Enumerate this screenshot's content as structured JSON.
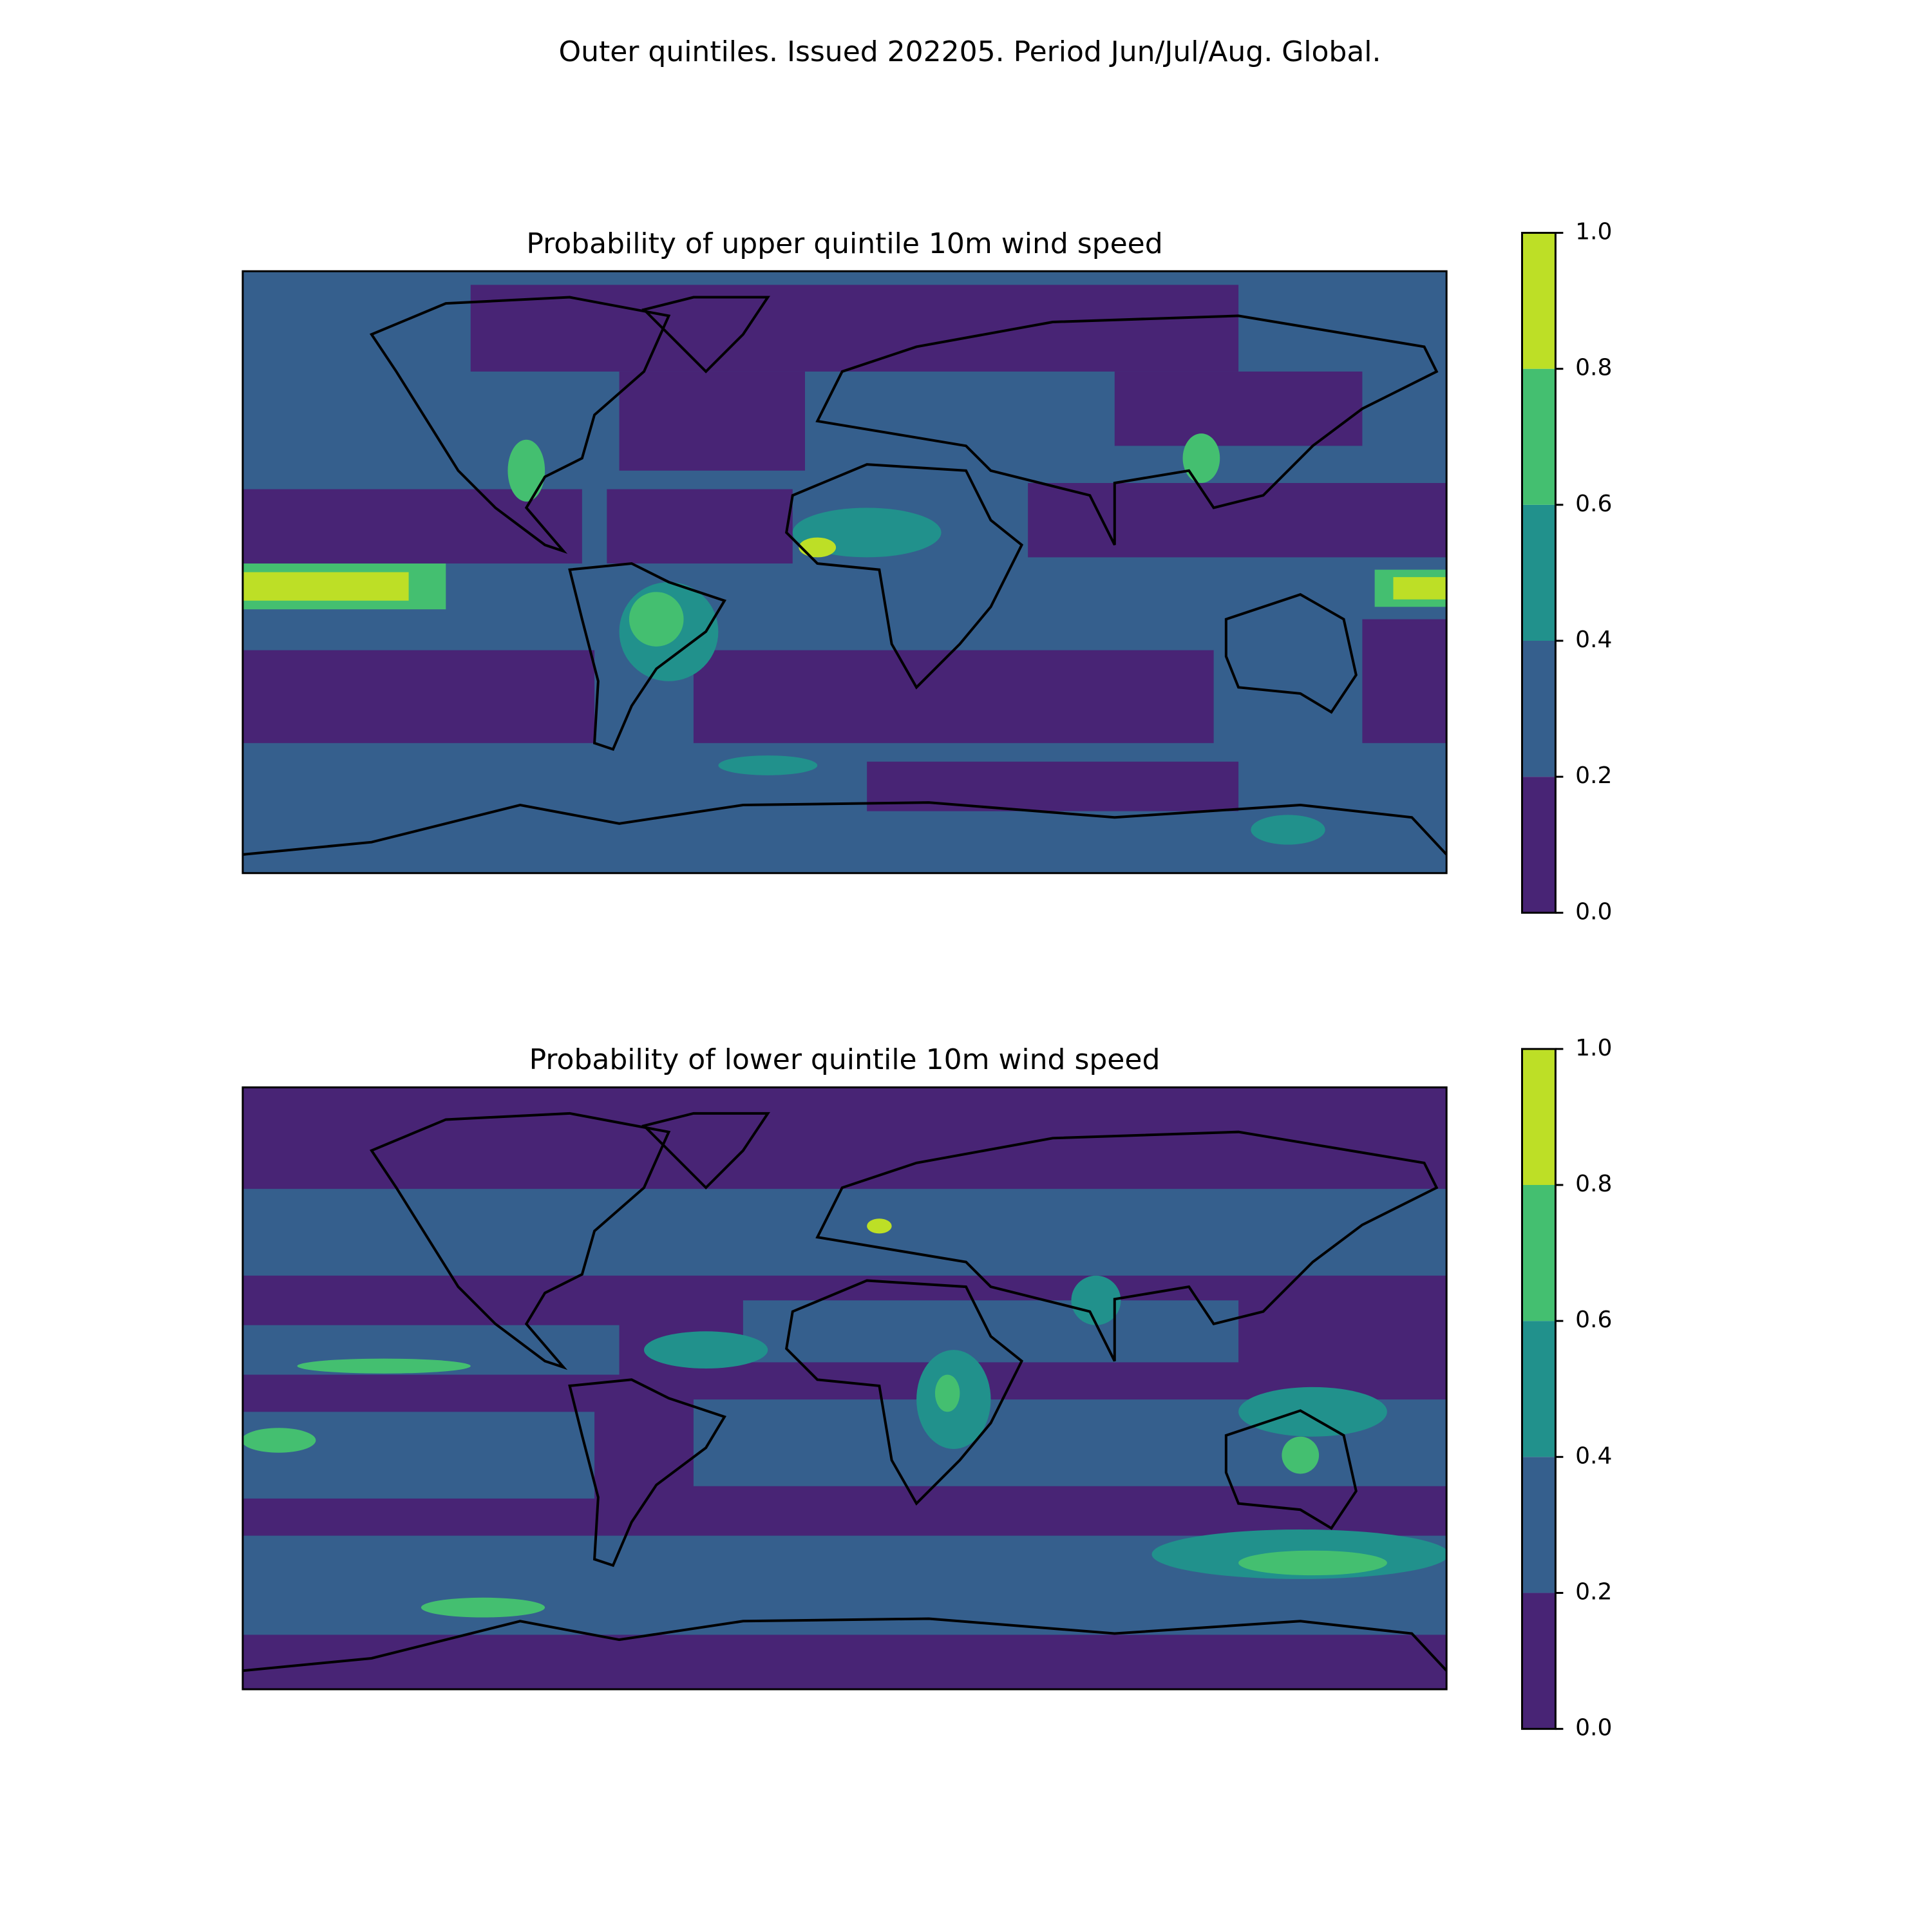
{
  "title": "Outer quintiles. Issued 202205. Period Jun/Jul/Aug. Global.",
  "colorbar": {
    "levels": [
      {
        "value": 0,
        "label": "0.0"
      },
      0.2,
      0.4,
      0.6,
      0.8,
      {
        "value": 1,
        "label": "1.0"
      }
    ],
    "colors": [
      "#482475",
      "#355f8d",
      "#21918c",
      "#44bf70",
      "#bddf26"
    ]
  },
  "panels": [
    {
      "title": "Probability of upper quintile 10m wind speed"
    },
    {
      "title": "Probability of lower quintile 10m wind speed"
    }
  ]
}
